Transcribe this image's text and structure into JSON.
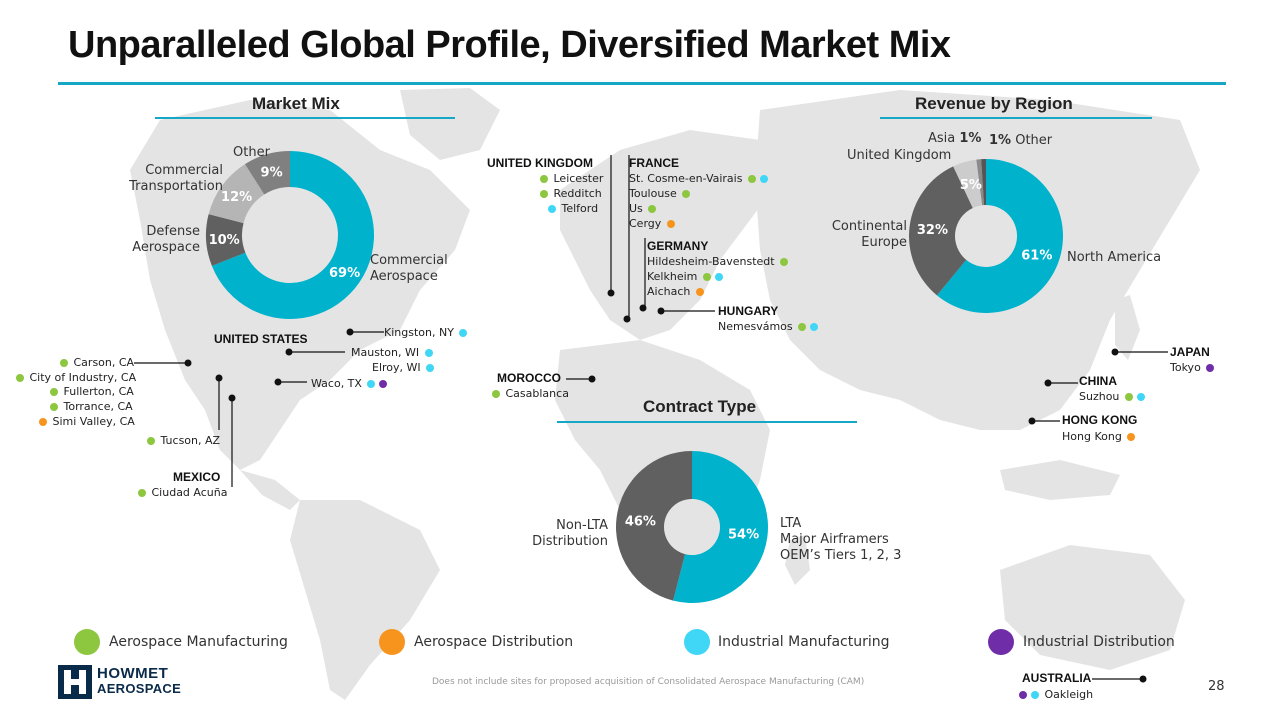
{
  "title": "Unparalleled Global Profile, Diversified Market Mix",
  "colors": {
    "aerospace_manufacturing": "#8dc63f",
    "aerospace_distribution": "#f7941d",
    "industrial_manufacturing": "#3fd7f5",
    "industrial_distribution": "#6f2da8",
    "teal": "#00b2cc",
    "dark_gray": "#606060",
    "mid_gray": "#9a9a9a",
    "light_gray": "#cccccc"
  },
  "market_mix": {
    "title": "Market Mix",
    "segments": [
      {
        "label_lines": [
          "Commercial",
          "Aerospace"
        ],
        "pct": "69%",
        "value": 69,
        "color": "#00b2cc"
      },
      {
        "label_lines": [
          "Defense",
          "Aerospace"
        ],
        "pct": "10%",
        "value": 10,
        "color": "#606060"
      },
      {
        "label_lines": [
          "Commercial",
          "Transportation"
        ],
        "pct": "12%",
        "value": 12,
        "color": "#b5b5b5"
      },
      {
        "label_lines": [
          "Other"
        ],
        "pct": "9%",
        "value": 9,
        "color": "#808080"
      }
    ]
  },
  "revenue_by_region": {
    "title": "Revenue by Region",
    "segments": [
      {
        "label": "North America",
        "pct": "61%",
        "value": 61,
        "color": "#00b2cc"
      },
      {
        "label_lines": [
          "Continental",
          "Europe"
        ],
        "pct": "32%",
        "value": 32,
        "color": "#606060"
      },
      {
        "label": "United Kingdom",
        "pct": "5%",
        "value": 5,
        "color": "#cccccc"
      },
      {
        "label": "Asia",
        "pct": "1%",
        "value": 1,
        "color": "#8a8a8a"
      },
      {
        "label": "Other",
        "pct": "1%",
        "value": 1,
        "color": "#555555"
      }
    ]
  },
  "contract_type": {
    "title": "Contract Type",
    "segments": [
      {
        "label_lines": [
          "LTA",
          "Major Airframers",
          "OEM’s Tiers 1, 2, 3"
        ],
        "pct": "54%",
        "value": 54,
        "color": "#00b2cc"
      },
      {
        "label_lines": [
          "Non-LTA",
          "Distribution"
        ],
        "pct": "46%",
        "value": 46,
        "color": "#606060"
      }
    ]
  },
  "locations": {
    "united_kingdom": {
      "country": "UNITED KINGDOM",
      "cities": [
        {
          "name": "Leicester",
          "types": [
            "aerospace_manufacturing"
          ]
        },
        {
          "name": "Redditch",
          "types": [
            "aerospace_manufacturing"
          ]
        },
        {
          "name": "Telford",
          "types": [
            "industrial_manufacturing"
          ]
        }
      ]
    },
    "france": {
      "country": "FRANCE",
      "cities": [
        {
          "name": "St. Cosme-en-Vairais",
          "types": [
            "aerospace_manufacturing",
            "industrial_manufacturing"
          ]
        },
        {
          "name": "Toulouse",
          "types": [
            "aerospace_manufacturing"
          ]
        },
        {
          "name": "Us",
          "types": [
            "aerospace_manufacturing"
          ]
        },
        {
          "name": "Cergy",
          "types": [
            "aerospace_distribution"
          ]
        }
      ]
    },
    "germany": {
      "country": "GERMANY",
      "cities": [
        {
          "name": "Hildesheim-Bavenstedt",
          "types": [
            "aerospace_manufacturing"
          ]
        },
        {
          "name": "Kelkheim",
          "types": [
            "aerospace_manufacturing",
            "industrial_manufacturing"
          ]
        },
        {
          "name": "Aichach",
          "types": [
            "aerospace_distribution"
          ]
        }
      ]
    },
    "hungary": {
      "country": "HUNGARY",
      "cities": [
        {
          "name": "Nemesvámos",
          "types": [
            "aerospace_manufacturing",
            "industrial_manufacturing"
          ]
        }
      ]
    },
    "morocco": {
      "country": "MOROCCO",
      "cities": [
        {
          "name": "Casablanca",
          "types": [
            "aerospace_manufacturing"
          ]
        }
      ]
    },
    "united_states": {
      "country": "UNITED STATES",
      "west_cities": [
        {
          "name": "Carson, CA",
          "types": [
            "aerospace_manufacturing"
          ]
        },
        {
          "name": "City of Industry, CA",
          "types": [
            "aerospace_manufacturing"
          ]
        },
        {
          "name": "Fullerton, CA",
          "types": [
            "aerospace_manufacturing"
          ]
        },
        {
          "name": "Torrance, CA",
          "types": [
            "aerospace_manufacturing"
          ]
        },
        {
          "name": "Simi Valley, CA",
          "types": [
            "aerospace_distribution"
          ]
        }
      ],
      "tucson": {
        "name": "Tucson, AZ",
        "types": [
          "aerospace_manufacturing"
        ]
      },
      "kingston": {
        "name": "Kingston, NY",
        "types": [
          "industrial_manufacturing"
        ]
      },
      "mauston": {
        "name": "Mauston, WI",
        "types": [
          "industrial_manufacturing"
        ]
      },
      "elroy": {
        "name": "Elroy, WI",
        "types": [
          "industrial_manufacturing"
        ]
      },
      "waco": {
        "name": "Waco, TX",
        "types": [
          "industrial_manufacturing",
          "industrial_distribution"
        ]
      }
    },
    "mexico": {
      "country": "MEXICO",
      "cities": [
        {
          "name": "Ciudad Acuña",
          "types": [
            "aerospace_manufacturing"
          ]
        }
      ]
    },
    "japan": {
      "country": "JAPAN",
      "cities": [
        {
          "name": "Tokyo",
          "types": [
            "industrial_distribution"
          ]
        }
      ]
    },
    "china": {
      "country": "CHINA",
      "cities": [
        {
          "name": "Suzhou",
          "types": [
            "aerospace_manufacturing",
            "industrial_manufacturing"
          ]
        }
      ]
    },
    "hong_kong": {
      "country": "HONG KONG",
      "cities": [
        {
          "name": "Hong Kong",
          "types": [
            "aerospace_distribution"
          ]
        }
      ]
    },
    "australia": {
      "country": "AUSTRALIA",
      "cities": [
        {
          "name": "Oakleigh",
          "types": [
            "industrial_distribution",
            "industrial_manufacturing"
          ]
        }
      ]
    }
  },
  "legend": [
    {
      "label": "Aerospace Manufacturing",
      "color": "#8dc63f"
    },
    {
      "label": "Aerospace Distribution",
      "color": "#f7941d"
    },
    {
      "label": "Industrial Manufacturing",
      "color": "#3fd7f5"
    },
    {
      "label": "Industrial Distribution",
      "color": "#6f2da8"
    }
  ],
  "logo": {
    "line1": "HOWMET",
    "line2": "AEROSPACE"
  },
  "footnote": "Does not include sites for proposed acquisition of Consolidated Aerospace Manufacturing (CAM)",
  "page_number": "28"
}
